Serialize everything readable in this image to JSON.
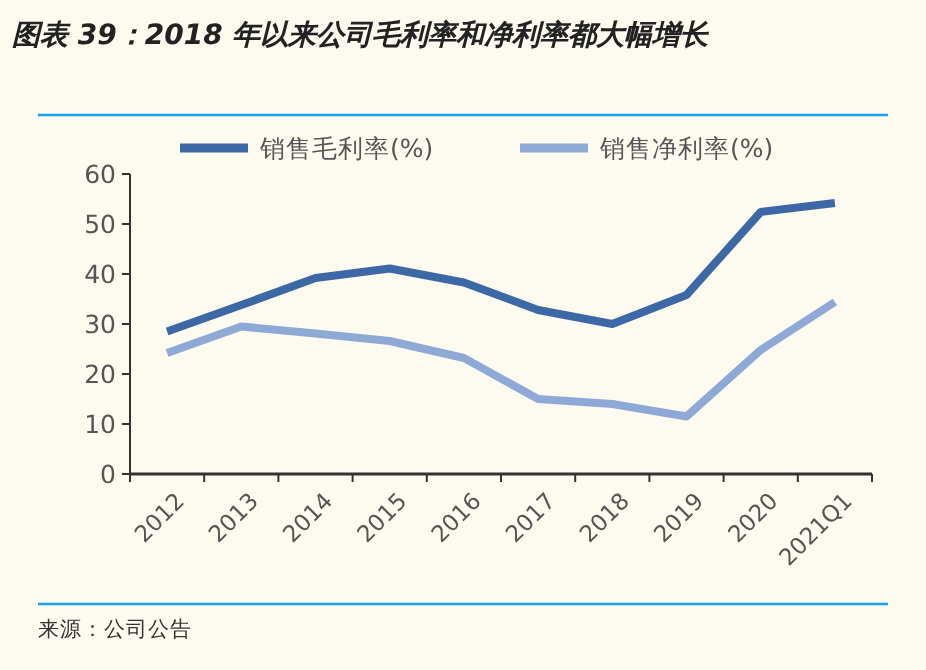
{
  "chart_data": {
    "type": "line",
    "title": "图表 39：2018 年以来公司毛利率和净利率都大幅增长",
    "categories": [
      "2012",
      "2013",
      "2014",
      "2015",
      "2016",
      "2017",
      "2018",
      "2019",
      "2020",
      "2021Q1"
    ],
    "series": [
      {
        "name": "销售毛利率(%)",
        "color": "#3d68a6",
        "values": [
          28.5,
          33.8,
          39.2,
          41.1,
          38.3,
          32.8,
          30.0,
          35.8,
          52.4,
          54.2
        ]
      },
      {
        "name": "销售净利率(%)",
        "color": "#8fa9d6",
        "values": [
          24.2,
          29.5,
          28.1,
          26.6,
          23.2,
          15.0,
          14.0,
          11.5,
          24.8,
          34.4
        ]
      }
    ],
    "ylim": [
      0,
      60
    ],
    "yticks": [
      0,
      10,
      20,
      30,
      40,
      50,
      60
    ],
    "grid": false,
    "legend": "top",
    "marker": "none",
    "line_style": "solid",
    "annotations": [
      "来源：公司公告"
    ]
  }
}
